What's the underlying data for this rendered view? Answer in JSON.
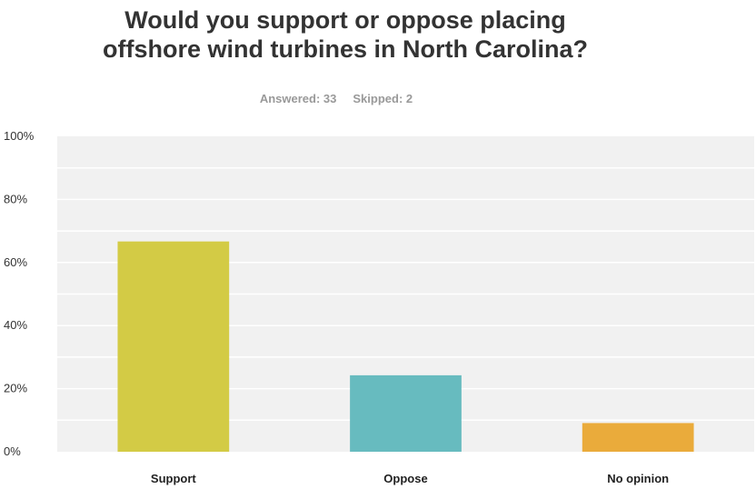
{
  "title_lines": [
    "Would you support or oppose placing",
    "offshore wind turbines in North Carolina?"
  ],
  "meta": {
    "answered": "Answered: 33",
    "skipped": "Skipped: 2"
  },
  "chart_data": {
    "type": "bar",
    "title": "Would you support or oppose placing offshore wind turbines in North Carolina?",
    "categories": [
      "Support",
      "Oppose",
      "No opinion"
    ],
    "values": [
      66.67,
      24.24,
      9.09
    ],
    "colors": [
      "#d3cb45",
      "#67bbbf",
      "#eaab3b"
    ],
    "ylim": [
      0,
      100
    ],
    "yticks": [
      0,
      20,
      40,
      60,
      80,
      100
    ],
    "ytick_labels": [
      "0%",
      "20%",
      "40%",
      "60%",
      "80%",
      "100%"
    ],
    "grid": true,
    "plot_background": "#f1f1f1",
    "grid_color": "#ffffff"
  }
}
